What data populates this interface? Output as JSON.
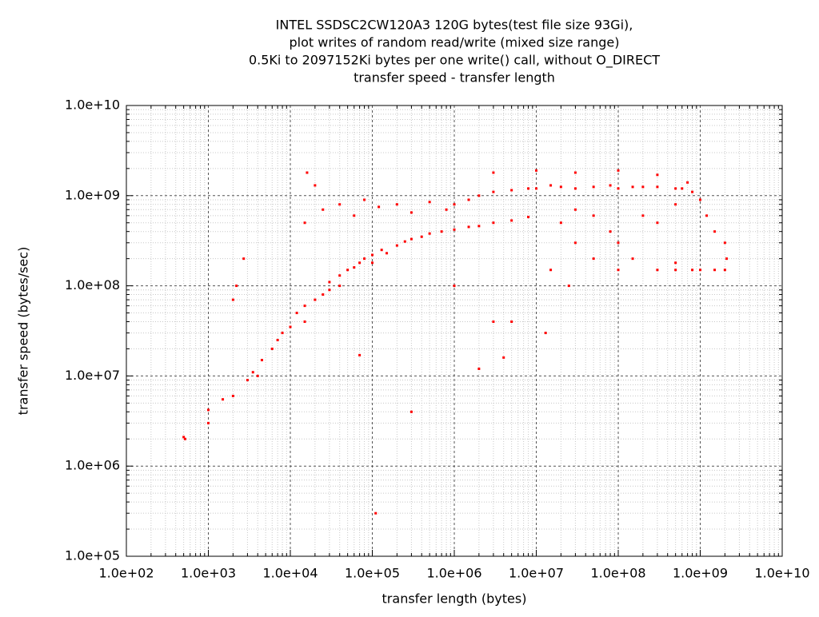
{
  "chart_data": {
    "type": "scatter",
    "title": [
      "INTEL SSDSC2CW120A3 120G bytes(test file size 93Gi),",
      "plot writes of random read/write (mixed size range)",
      "0.5Ki to 2097152Ki bytes per one write() call, without O_DIRECT",
      "transfer speed - transfer length"
    ],
    "xlabel": "transfer length (bytes)",
    "ylabel": "transfer speed (bytes/sec)",
    "log_x": true,
    "log_y": true,
    "grid": true,
    "color": "#ff0000",
    "xlim": [
      100,
      10000000000
    ],
    "ylim": [
      100000,
      10000000000
    ],
    "xticks": [
      {
        "value": 100,
        "label": "1.0e+02"
      },
      {
        "value": 1000,
        "label": "1.0e+03"
      },
      {
        "value": 10000,
        "label": "1.0e+04"
      },
      {
        "value": 100000,
        "label": "1.0e+05"
      },
      {
        "value": 1000000,
        "label": "1.0e+06"
      },
      {
        "value": 10000000,
        "label": "1.0e+07"
      },
      {
        "value": 100000000,
        "label": "1.0e+08"
      },
      {
        "value": 1000000000,
        "label": "1.0e+09"
      },
      {
        "value": 10000000000,
        "label": "1.0e+10"
      }
    ],
    "yticks": [
      {
        "value": 100000,
        "label": "1.0e+05"
      },
      {
        "value": 1000000,
        "label": "1.0e+06"
      },
      {
        "value": 10000000,
        "label": "1.0e+07"
      },
      {
        "value": 100000000,
        "label": "1.0e+08"
      },
      {
        "value": 1000000000,
        "label": "1.0e+09"
      },
      {
        "value": 10000000000,
        "label": "1.0e+10"
      }
    ],
    "x": [
      500,
      520,
      1000,
      1000,
      1500,
      2000,
      2000,
      2200,
      2700,
      3000,
      3500,
      4000,
      4500,
      6000,
      7000,
      8000,
      10000,
      12000,
      15000,
      15000,
      20000,
      20000,
      25000,
      30000,
      30000,
      40000,
      40000,
      50000,
      60000,
      70000,
      80000,
      100000,
      100000,
      130000,
      150000,
      200000,
      250000,
      300000,
      400000,
      500000,
      700000,
      1000000,
      1500000,
      2000000,
      3000000,
      5000000,
      8000000,
      25000,
      40000,
      60000,
      80000,
      120000,
      200000,
      300000,
      500000,
      800000,
      15000,
      16000,
      1000000,
      1500000,
      2000000,
      3000000,
      5000000,
      8000000,
      10000000,
      15000000,
      20000000,
      30000000,
      50000000,
      80000000,
      100000000,
      150000000,
      200000000,
      300000000,
      500000000,
      600000000,
      800000000,
      1000000000,
      1200000000,
      1500000000,
      2000000000,
      2100000000,
      3000000,
      10000000,
      30000000,
      100000000,
      300000000,
      700000000,
      300000000,
      500000000,
      800000000,
      1000000000,
      1500000000,
      2000000000,
      500000000,
      20000000,
      30000000,
      50000000,
      80000000,
      100000000,
      150000000,
      200000000,
      300000000,
      500000000,
      15000000,
      25000000,
      100000000,
      50000000,
      30000000,
      110000,
      300000,
      4000000,
      2000000,
      70000,
      1000000,
      5000000,
      13000000,
      3000000
    ],
    "y": [
      2100000,
      2000000,
      3000000,
      4200000,
      5500000,
      6000000,
      70000000,
      100000000,
      200000000,
      9000000,
      11000000,
      10000000,
      15000000,
      20000000,
      25000000,
      30000000,
      35000000,
      50000000,
      60000000,
      40000000,
      70000000,
      1300000000,
      80000000,
      90000000,
      110000000,
      130000000,
      100000000,
      150000000,
      160000000,
      180000000,
      200000000,
      220000000,
      180000000,
      250000000,
      230000000,
      280000000,
      310000000,
      330000000,
      350000000,
      380000000,
      400000000,
      420000000,
      450000000,
      460000000,
      500000000,
      530000000,
      580000000,
      700000000,
      800000000,
      600000000,
      900000000,
      750000000,
      800000000,
      650000000,
      850000000,
      700000000,
      500000000,
      1800000000,
      800000000,
      900000000,
      1000000000,
      1100000000,
      1150000000,
      1200000000,
      1200000000,
      1300000000,
      1250000000,
      1200000000,
      1250000000,
      1300000000,
      1200000000,
      1250000000,
      1250000000,
      1250000000,
      1200000000,
      1200000000,
      1100000000,
      900000000,
      600000000,
      400000000,
      300000000,
      200000000,
      1800000000,
      1900000000,
      1800000000,
      1900000000,
      1700000000,
      1400000000,
      150000000,
      150000000,
      150000000,
      150000000,
      150000000,
      150000000,
      180000000,
      500000000,
      300000000,
      200000000,
      400000000,
      300000000,
      200000000,
      600000000,
      500000000,
      800000000,
      150000000,
      100000000,
      150000000,
      600000000,
      700000000,
      300000,
      4000000,
      16000000,
      12000000,
      17000000,
      100000000,
      40000000,
      30000000,
      40000000
    ]
  }
}
